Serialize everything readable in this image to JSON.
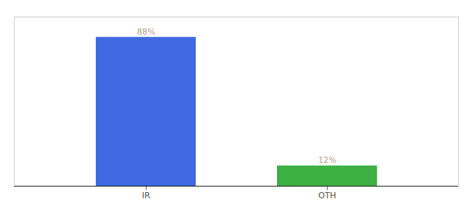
{
  "chart_data": {
    "type": "bar",
    "categories": [
      "IR",
      "OTH"
    ],
    "values": [
      88,
      12
    ],
    "value_labels": [
      "88%",
      "12%"
    ],
    "colors": [
      "#4169e1",
      "#3cb043"
    ],
    "ylim": [
      0,
      100
    ],
    "data_labels": true,
    "tick_labels": "x",
    "grid": false
  }
}
